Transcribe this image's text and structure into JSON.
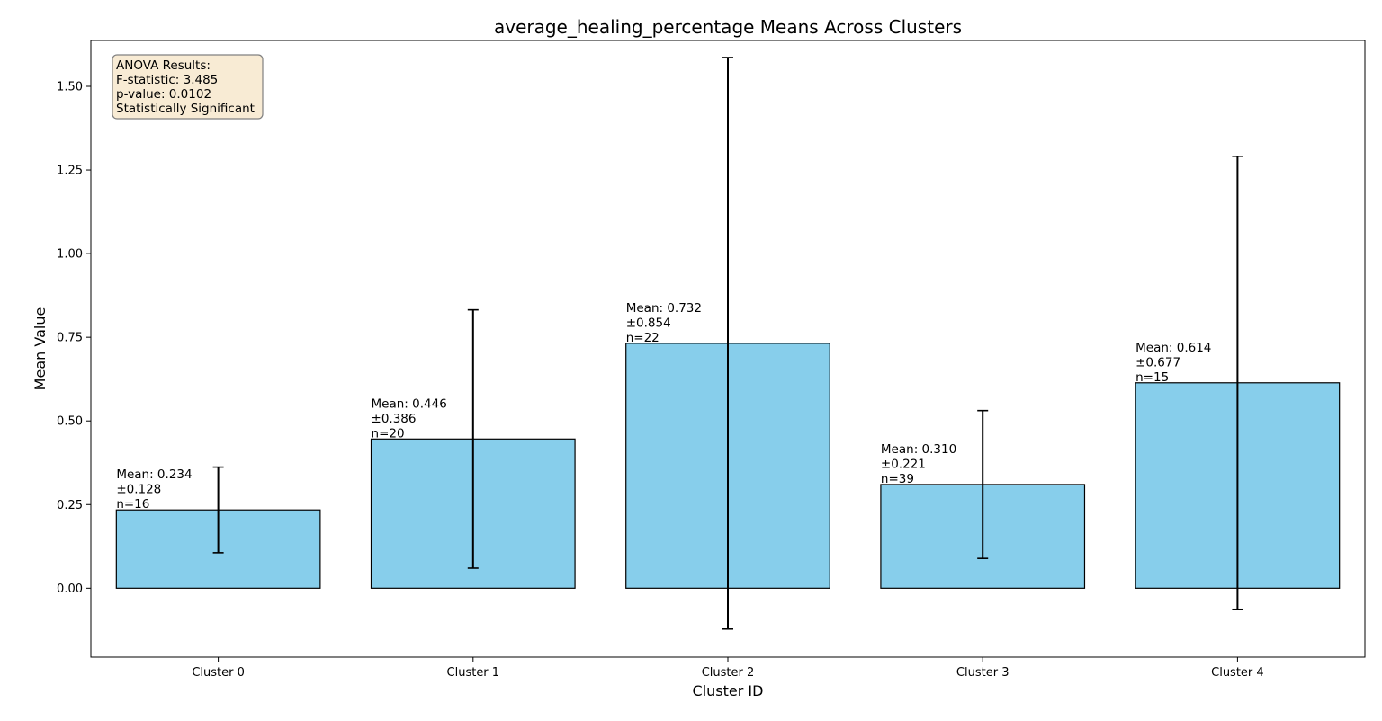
{
  "chart_data": {
    "type": "bar",
    "title": "average_healing_percentage Means Across Clusters",
    "xlabel": "Cluster ID",
    "ylabel": "Mean Value",
    "categories": [
      "Cluster 0",
      "Cluster 1",
      "Cluster 2",
      "Cluster 3",
      "Cluster 4"
    ],
    "values": [
      0.234,
      0.446,
      0.732,
      0.31,
      0.614
    ],
    "errors": [
      0.128,
      0.386,
      0.854,
      0.221,
      0.677
    ],
    "counts": [
      16,
      20,
      22,
      39,
      15
    ],
    "bar_labels": [
      [
        "Mean: 0.234",
        "±0.128",
        "n=16"
      ],
      [
        "Mean: 0.446",
        "±0.386",
        "n=20"
      ],
      [
        "Mean: 0.732",
        "±0.854",
        "n=22"
      ],
      [
        "Mean: 0.310",
        "±0.221",
        "n=39"
      ],
      [
        "Mean: 0.614",
        "±0.677",
        "n=15"
      ]
    ],
    "ylim": [
      -0.206,
      1.637
    ],
    "yticks": [
      0.0,
      0.25,
      0.5,
      0.75,
      1.0,
      1.25,
      1.5
    ],
    "ytick_labels": [
      "0.00",
      "0.25",
      "0.50",
      "0.75",
      "1.00",
      "1.25",
      "1.50"
    ],
    "grid": false,
    "bar_color": "#87CEEB",
    "bar_edge_color": "#000000",
    "annotation": {
      "lines": [
        "ANOVA Results:",
        "F-statistic: 3.485",
        "p-value: 0.0102",
        "Statistically Significant"
      ],
      "placement": "top-left",
      "background": "#F8EBD4",
      "border": "#808080"
    }
  }
}
